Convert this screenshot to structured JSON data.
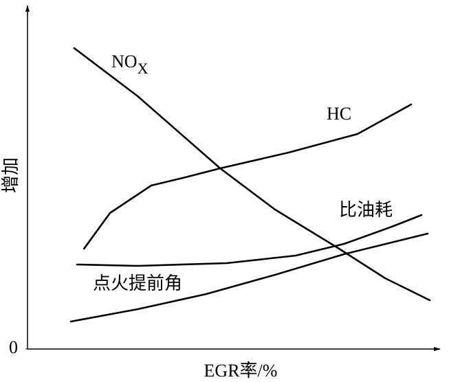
{
  "chart_data": {
    "type": "line",
    "x_label": "EGR率/%",
    "y_label": "增加",
    "xlim": [
      0,
      100
    ],
    "ylim": [
      0,
      100
    ],
    "yticks": [
      0
    ],
    "series": [
      {
        "name": "NOX",
        "color": "#000000",
        "x": [
          11.3,
          26.7,
          46.7,
          60,
          75,
          86.7,
          97.5
        ],
        "values": [
          87.6,
          73.6,
          52.6,
          40.6,
          29.6,
          20.6,
          14.2
        ]
      },
      {
        "name": "HC",
        "color": "#000000",
        "x": [
          13.7,
          20,
          30,
          38.3,
          46.7,
          63.3,
          80,
          93
        ],
        "values": [
          29.2,
          39.6,
          47.6,
          50,
          52.6,
          57.2,
          62.6,
          71.2
        ]
      },
      {
        "name": "比油耗",
        "color": "#000000",
        "x": [
          12,
          26.7,
          48.3,
          65,
          76.7,
          88.3,
          95.5
        ],
        "values": [
          24.6,
          24.2,
          25,
          27.2,
          30.6,
          35.6,
          39
        ]
      },
      {
        "name": "点火提前角",
        "color": "#000000",
        "x": [
          10.5,
          26.7,
          43.3,
          60,
          76.7,
          97
        ],
        "values": [
          8,
          11.6,
          16,
          21.6,
          27.6,
          33.6
        ]
      }
    ]
  }
}
